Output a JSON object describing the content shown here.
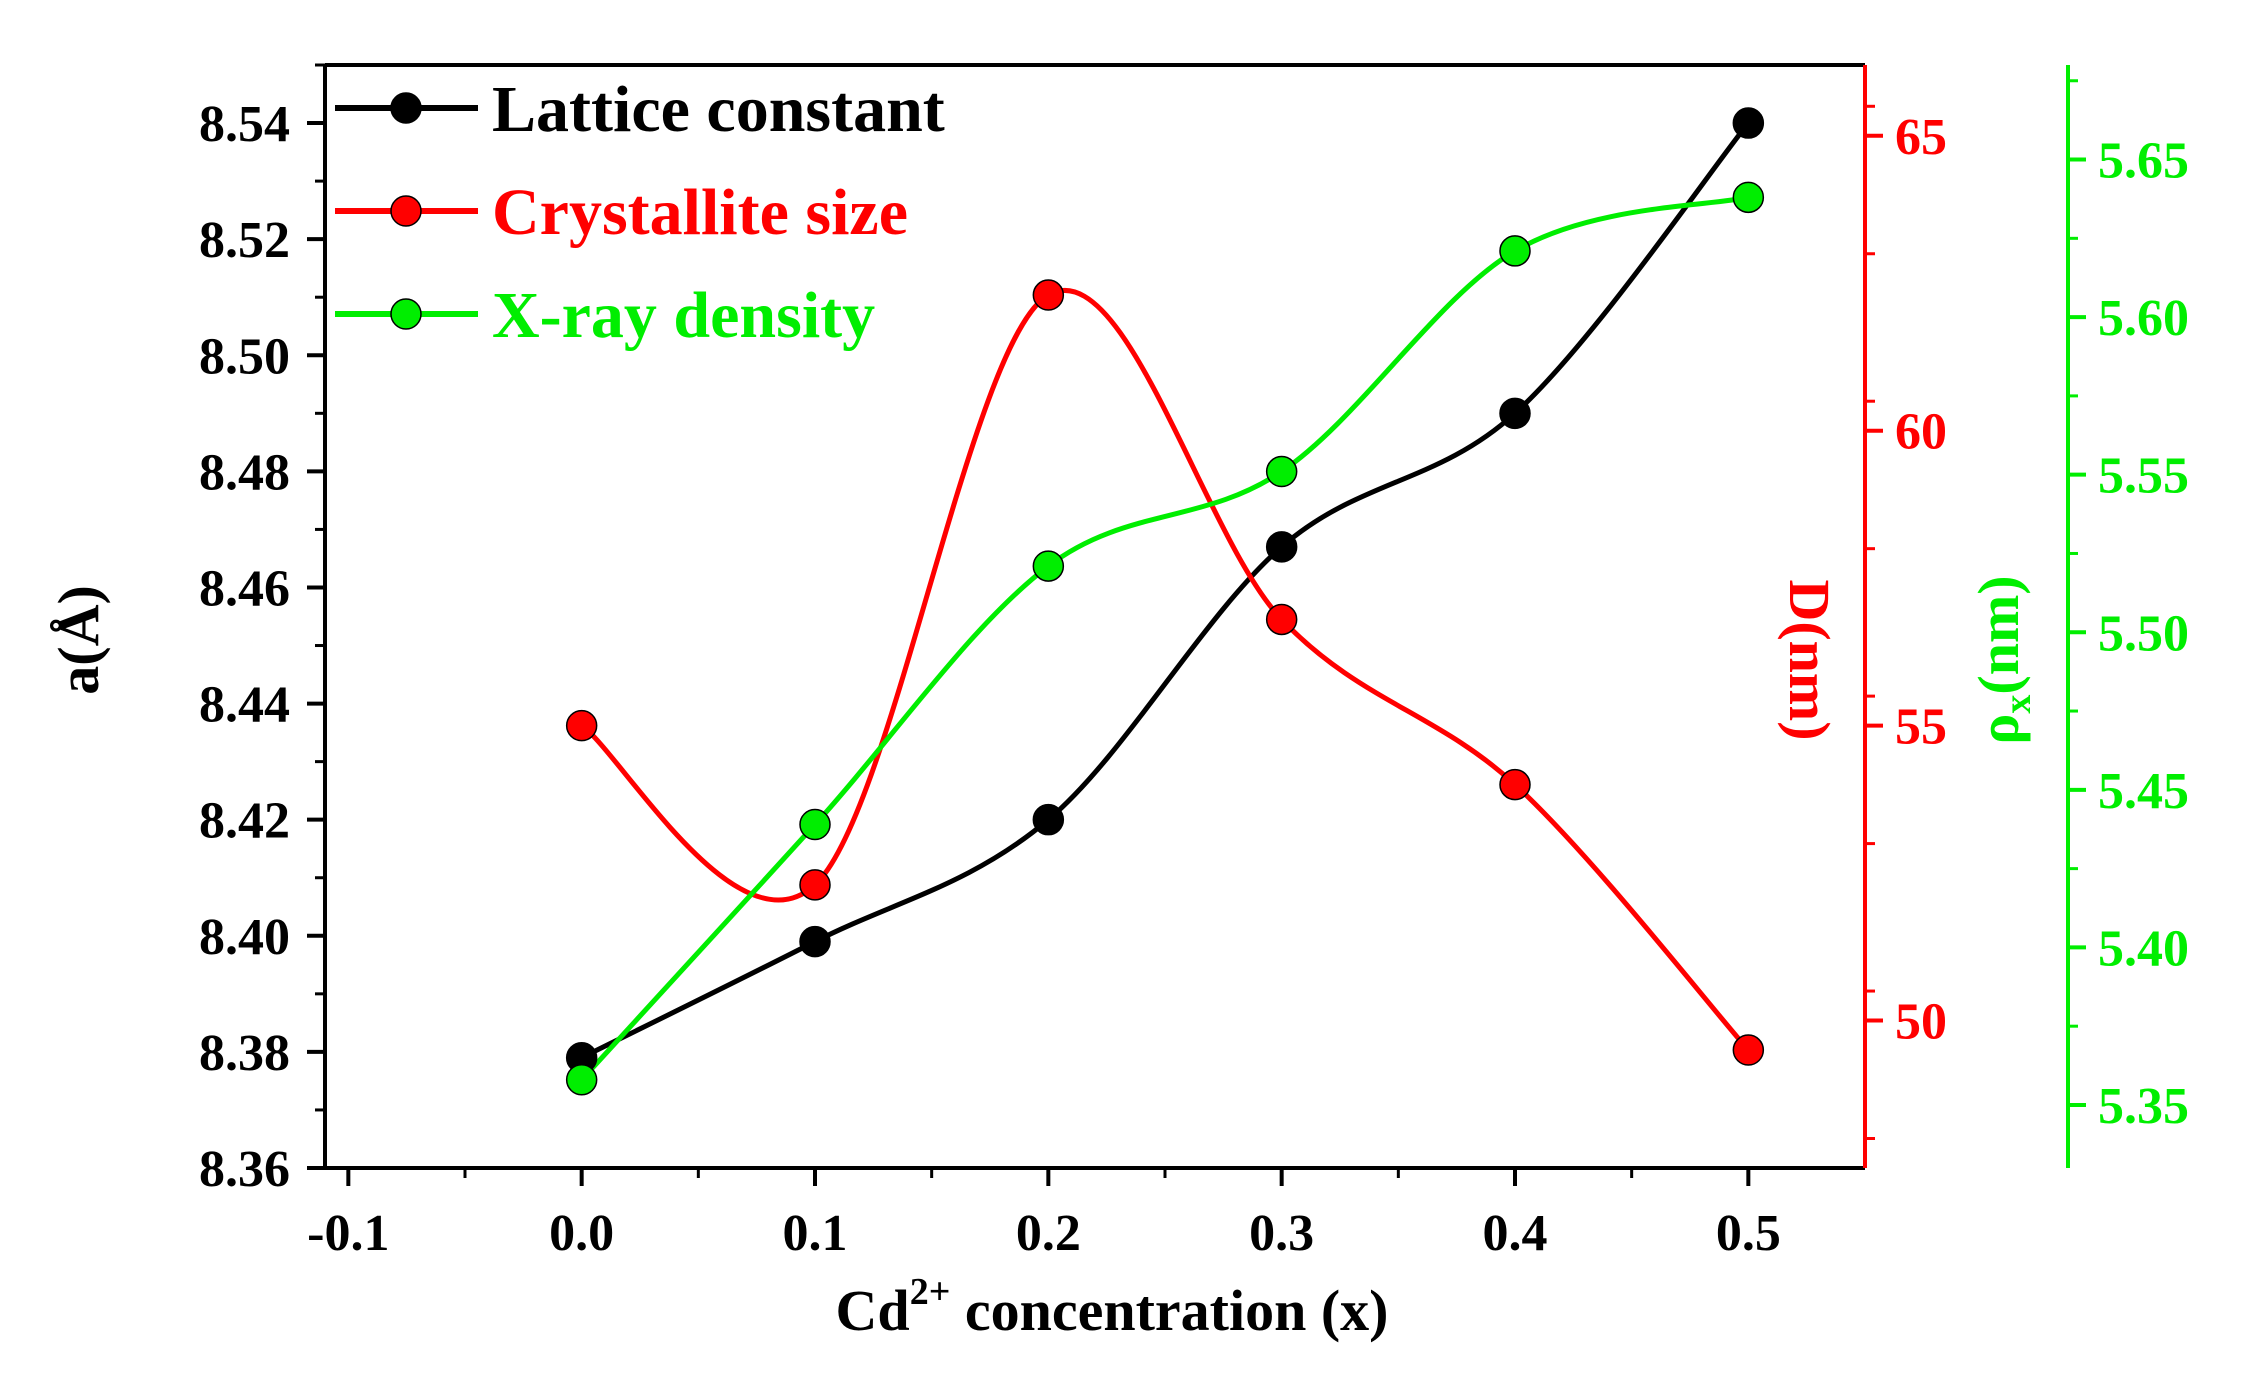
{
  "chart_data": {
    "type": "line",
    "title": "",
    "xlabel": "Cd",
    "xlabel_sup": "2+",
    "xlabel_suffix": " concentration (x)",
    "x_ticks": [
      "-0.1",
      "0.0",
      "0.1",
      "0.2",
      "0.3",
      "0.4",
      "0.5"
    ],
    "xlim": [
      -0.11,
      0.55
    ],
    "x": [
      0.0,
      0.1,
      0.2,
      0.3,
      0.4,
      0.5
    ],
    "legend_position": "top-left",
    "series": [
      {
        "name": "Lattice constant",
        "axis": "left",
        "color": "#000000",
        "values": [
          8.379,
          8.399,
          8.42,
          8.467,
          8.49,
          8.54
        ]
      },
      {
        "name": "Crystallite size",
        "axis": "right1",
        "color": "#ff0000",
        "values": [
          55.0,
          52.3,
          62.3,
          56.8,
          54.0,
          49.5
        ]
      },
      {
        "name": "X-ray density",
        "axis": "right2",
        "color": "#00ee00",
        "values": [
          5.358,
          5.439,
          5.521,
          5.551,
          5.621,
          5.638
        ]
      }
    ],
    "axes": {
      "left": {
        "label": "a(Å)",
        "ylim": [
          8.36,
          8.55
        ],
        "ticks": [
          "8.36",
          "8.38",
          "8.40",
          "8.42",
          "8.44",
          "8.46",
          "8.48",
          "8.50",
          "8.52",
          "8.54"
        ],
        "color": "#000000"
      },
      "right1": {
        "label": "D(nm)",
        "ylim": [
          47.5,
          66.2
        ],
        "ticks": [
          "50",
          "55",
          "60",
          "65"
        ],
        "color": "#ff0000"
      },
      "right2": {
        "label_main": "ρ",
        "label_sub": "x",
        "label_suffix": "(nm)",
        "ylim": [
          5.33,
          5.68
        ],
        "ticks": [
          "5.35",
          "5.40",
          "5.45",
          "5.50",
          "5.55",
          "5.60",
          "5.65"
        ],
        "color": "#00ee00"
      }
    }
  }
}
